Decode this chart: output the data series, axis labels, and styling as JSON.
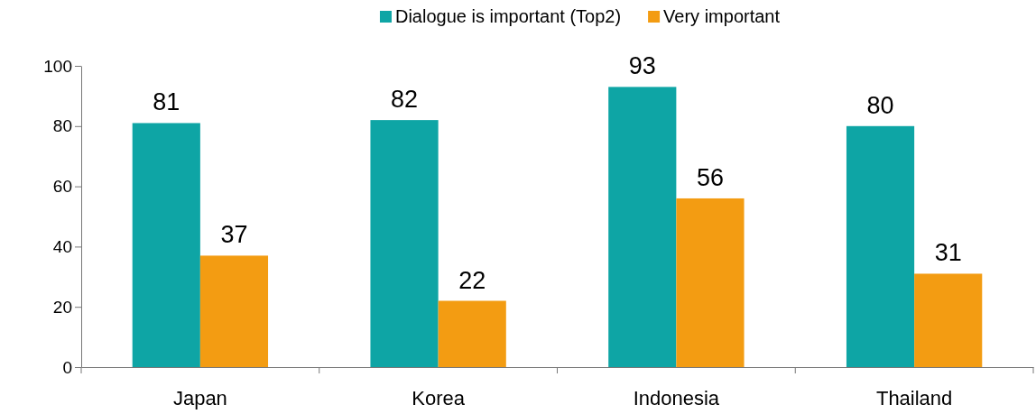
{
  "chart_data": {
    "type": "bar",
    "categories": [
      "Japan",
      "Korea",
      "Indonesia",
      "Thailand"
    ],
    "series": [
      {
        "name": "Dialogue is important (Top2)",
        "color": "#0ea5a5",
        "values": [
          81,
          82,
          93,
          80
        ]
      },
      {
        "name": "Very important",
        "color": "#f39c12",
        "values": [
          37,
          22,
          56,
          31
        ]
      }
    ],
    "ylim": [
      0,
      100
    ],
    "yticks": [
      0,
      20,
      40,
      60,
      80,
      100
    ],
    "data_labels": true,
    "legend": "top",
    "grid": false
  }
}
